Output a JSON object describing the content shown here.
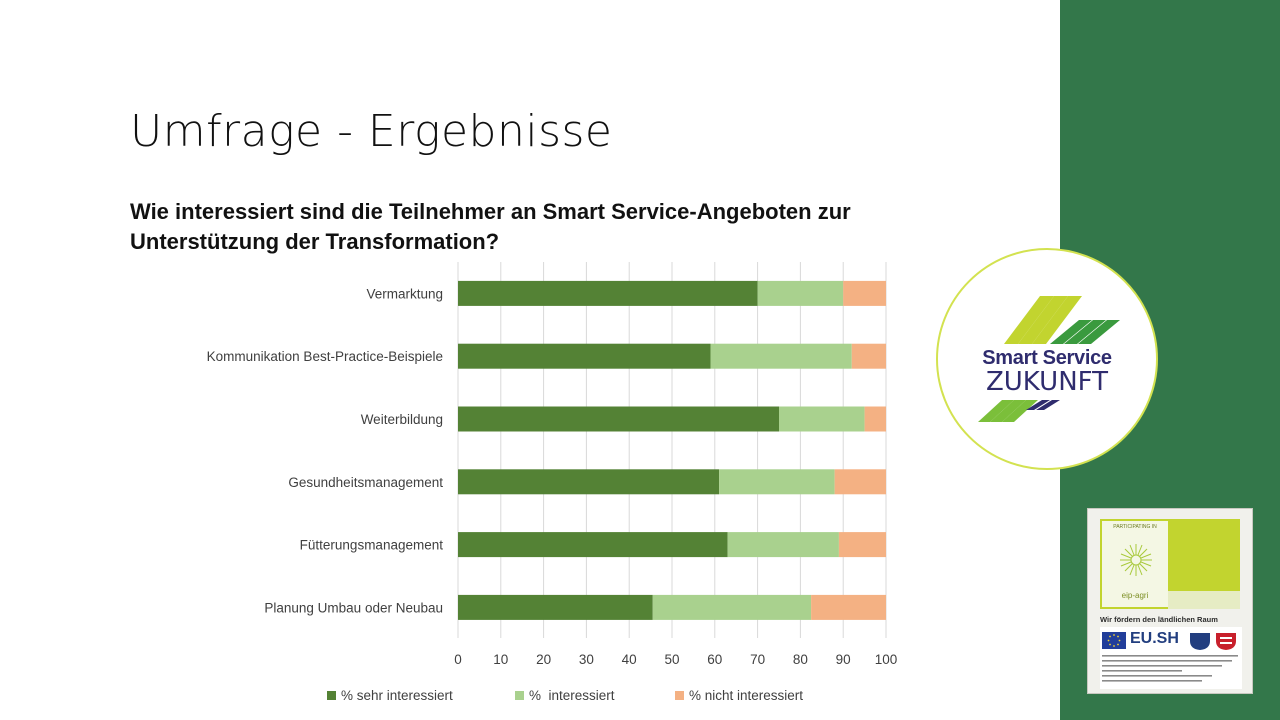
{
  "slide": {
    "title": "Umfrage - Ergebnisse",
    "question": "Wie interessiert sind die Teilnehmer an Smart Service-Angeboten zur Unterstützung der Transformation?"
  },
  "chart_data": {
    "type": "bar",
    "orientation": "horizontal",
    "stacked": true,
    "categories": [
      "Vermarktung",
      "Kommunikation Best-Practice-Beispiele",
      "Weiterbildung",
      "Gesundheitsmanagement",
      "Fütterungsmanagement",
      "Planung Umbau oder Neubau"
    ],
    "series": [
      {
        "name": "% sehr interessiert",
        "color": "#548235",
        "values": [
          70,
          59,
          75,
          61,
          63,
          45.5
        ]
      },
      {
        "name": "%  interessiert",
        "color": "#a9d18e",
        "values": [
          20,
          33,
          20,
          27,
          26,
          37
        ]
      },
      {
        "name": "% nicht interessiert",
        "color": "#f4b183",
        "values": [
          10,
          8,
          5,
          12,
          11,
          17.5
        ]
      }
    ],
    "xlim": [
      0,
      100
    ],
    "xticks": [
      "0",
      "10",
      "20",
      "30",
      "40",
      "50",
      "60",
      "70",
      "80",
      "90",
      "100"
    ],
    "grid": true,
    "legend": "bottom"
  },
  "logo": {
    "line1": "Smart Service",
    "line2": "ZUKUNFT",
    "brand_color": "#2f2c6e",
    "accent_color": "#b8cc2e"
  },
  "eu_badge": {
    "participating": "PARTICIPATING IN",
    "eip": "eip-agri",
    "foerder": "Wir fördern den ländlichen Raum",
    "eush": "EU.SH"
  },
  "colors": {
    "sidebar": "#33774a"
  }
}
